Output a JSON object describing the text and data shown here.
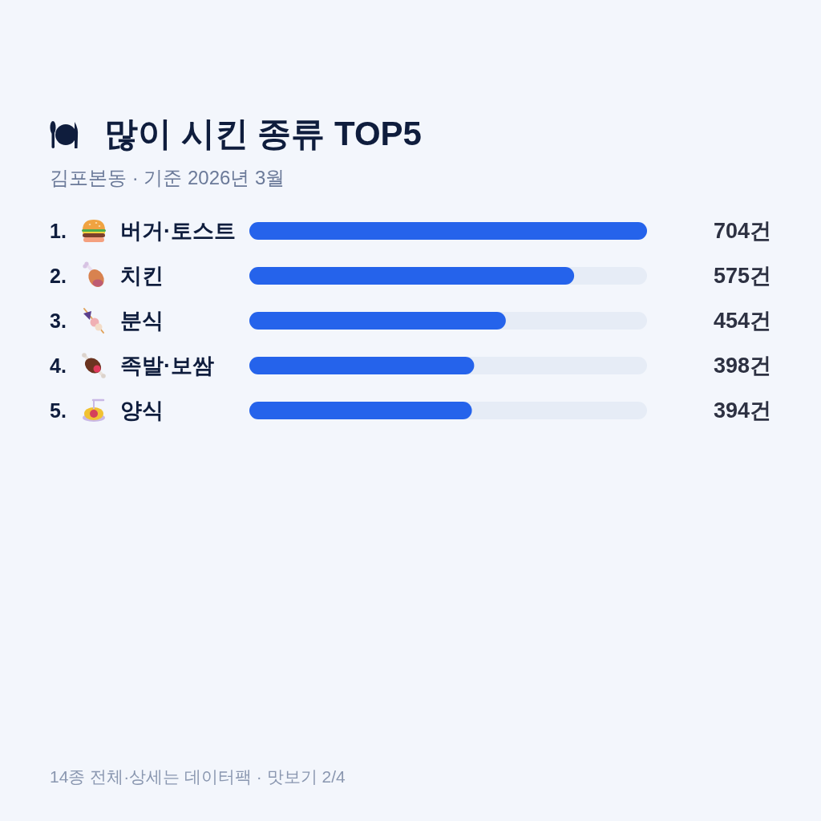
{
  "chart_data": {
    "type": "bar",
    "orientation": "horizontal",
    "title": "많이 시킨 종류 TOP5",
    "subtitle": "김포본동 · 기준 2026년 3월",
    "categories": [
      "1. 버거·토스트",
      "2. 치킨",
      "3. 분식",
      "4. 족발·보쌈",
      "5. 양식"
    ],
    "values": [
      704,
      575,
      454,
      398,
      394
    ],
    "color": "#2563eb",
    "xlim": [
      0,
      704
    ],
    "value_labels": [
      "704건",
      "575건",
      "454건",
      "398건",
      "394건"
    ],
    "tick_labels": "y",
    "annotations": [
      "14종 전체·상세는 데이터팩 · 맛보기 2/4"
    ]
  }
}
